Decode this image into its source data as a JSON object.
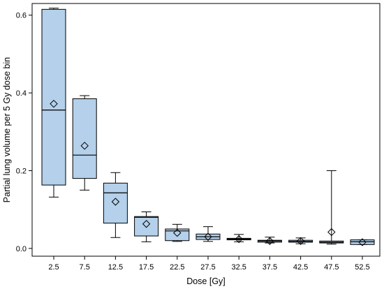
{
  "chart_data": {
    "type": "box",
    "xlabel": "Dose [Gy]",
    "ylabel": "Partial lung volume per 5 Gy dose bin",
    "ylim": [
      -0.02,
      0.63
    ],
    "yticks": [
      "0.0",
      "0.2",
      "0.4",
      "0.6"
    ],
    "ytick_values": [
      0,
      0.2,
      0.4,
      0.6
    ],
    "categories": [
      "2.5",
      "7.5",
      "12.5",
      "17.5",
      "22.5",
      "27.5",
      "32.5",
      "37.5",
      "42.5",
      "47.5",
      "52.5"
    ],
    "boxes": [
      {
        "min": 0.132,
        "q1": 0.163,
        "median": 0.356,
        "q3": 0.615,
        "max": 0.618,
        "mean": 0.372
      },
      {
        "min": 0.15,
        "q1": 0.18,
        "median": 0.24,
        "q3": 0.385,
        "max": 0.393,
        "mean": 0.264
      },
      {
        "min": 0.028,
        "q1": 0.065,
        "median": 0.143,
        "q3": 0.168,
        "max": 0.195,
        "mean": 0.12
      },
      {
        "min": 0.017,
        "q1": 0.032,
        "median": 0.08,
        "q3": 0.082,
        "max": 0.094,
        "mean": 0.063
      },
      {
        "min": 0.018,
        "q1": 0.02,
        "median": 0.045,
        "q3": 0.05,
        "max": 0.062,
        "mean": 0.04
      },
      {
        "min": 0.018,
        "q1": 0.023,
        "median": 0.03,
        "q3": 0.037,
        "max": 0.056,
        "mean": 0.03
      },
      {
        "min": 0.017,
        "q1": 0.022,
        "median": 0.024,
        "q3": 0.026,
        "max": 0.036,
        "mean": 0.024
      },
      {
        "min": 0.014,
        "q1": 0.016,
        "median": 0.019,
        "q3": 0.021,
        "max": 0.029,
        "mean": 0.019
      },
      {
        "min": 0.012,
        "q1": 0.016,
        "median": 0.018,
        "q3": 0.021,
        "max": 0.027,
        "mean": 0.019
      },
      {
        "min": 0.011,
        "q1": 0.014,
        "median": 0.016,
        "q3": 0.019,
        "max": 0.2,
        "mean": 0.042
      },
      {
        "min": 0.01,
        "q1": 0.01,
        "median": 0.017,
        "q3": 0.022,
        "max": 0.022,
        "mean": 0.016
      }
    ],
    "grid": false,
    "legend": "none",
    "colors": {
      "box_fill": "#b4d0ea",
      "stroke": "#000000"
    }
  }
}
